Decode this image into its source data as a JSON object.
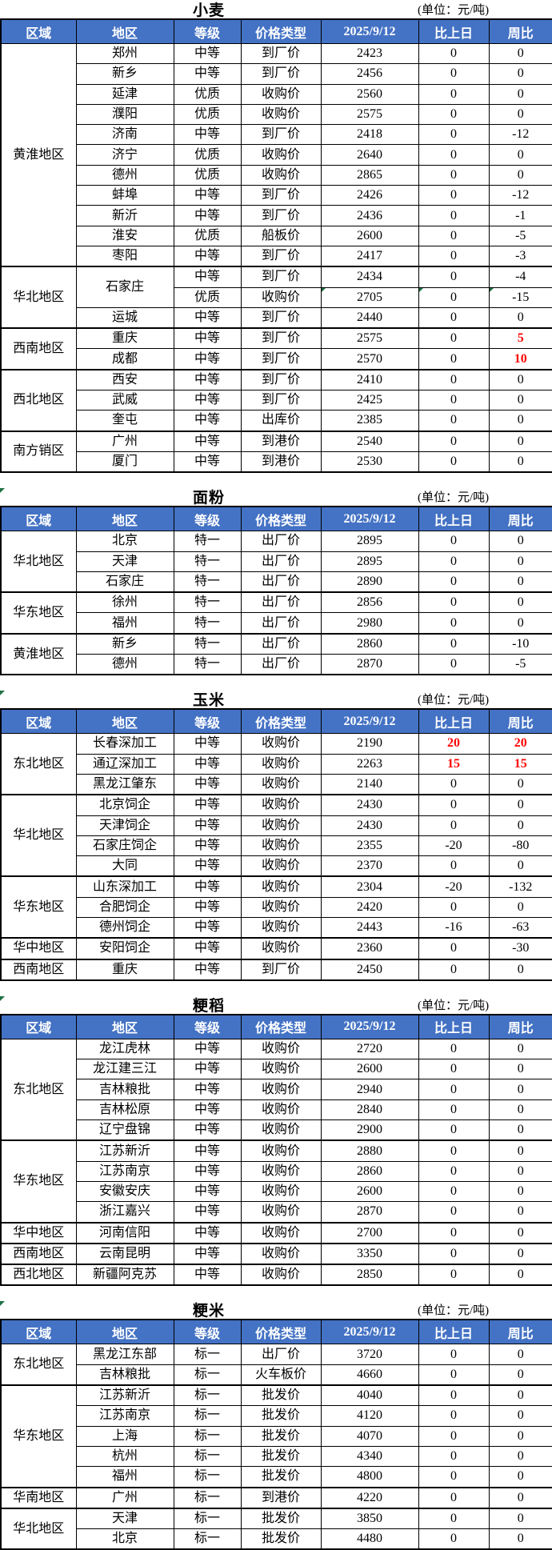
{
  "unit_label": "(单位：元/吨)",
  "columns": [
    "区域",
    "地区",
    "等级",
    "价格类型",
    "2025/9/12",
    "比上日",
    "周比"
  ],
  "colors": {
    "header_bg": "#4472C4",
    "header_text": "#FFFFFF",
    "highlight_green": "#7CB95A",
    "negative_red": "#FF0000",
    "flag_green": "#1F7244",
    "border": "#000000"
  },
  "tables": [
    {
      "title": "小麦",
      "groups": [
        {
          "region": "黄淮地区",
          "rows": [
            {
              "area": "郑州",
              "grade": "中等",
              "type": "到厂价",
              "price": "2423",
              "day": "0",
              "week": "0"
            },
            {
              "area": "新乡",
              "grade": "中等",
              "type": "到厂价",
              "price": "2456",
              "day": "0",
              "week": "0"
            },
            {
              "area": "延津",
              "grade": "优质",
              "type": "收购价",
              "price": "2560",
              "day": "0",
              "week": "0"
            },
            {
              "area": "濮阳",
              "grade": "优质",
              "type": "收购价",
              "price": "2575",
              "day": "0",
              "week": "0"
            },
            {
              "area": "济南",
              "grade": "中等",
              "type": "到厂价",
              "price": "2418",
              "day": "0",
              "week": "-12",
              "weekBg": true
            },
            {
              "area": "济宁",
              "grade": "优质",
              "type": "收购价",
              "price": "2640",
              "day": "0",
              "week": "0"
            },
            {
              "area": "德州",
              "grade": "优质",
              "type": "收购价",
              "price": "2865",
              "day": "0",
              "week": "0"
            },
            {
              "area": "蚌埠",
              "grade": "中等",
              "type": "到厂价",
              "price": "2426",
              "day": "0",
              "week": "-12",
              "weekBg": true
            },
            {
              "area": "新沂",
              "grade": "中等",
              "type": "到厂价",
              "price": "2436",
              "day": "0",
              "week": "-1",
              "weekBg": true
            },
            {
              "area": "淮安",
              "grade": "优质",
              "type": "船板价",
              "price": "2600",
              "day": "0",
              "week": "-5",
              "weekBg": true
            },
            {
              "area": "枣阳",
              "grade": "中等",
              "type": "到厂价",
              "price": "2417",
              "day": "0",
              "week": "-3",
              "weekBg": true
            }
          ]
        },
        {
          "region": "华北地区",
          "rows": [
            {
              "area": "石家庄",
              "areaSpan": 2,
              "grade": "中等",
              "type": "到厂价",
              "price": "2434",
              "day": "0",
              "week": "-4",
              "weekBg": true
            },
            {
              "skipArea": true,
              "grade": "优质",
              "type": "收购价",
              "price": "2705",
              "day": "0",
              "week": "-15",
              "weekBg": true,
              "flags": [
                "price",
                "day",
                "week"
              ]
            },
            {
              "area": "运城",
              "grade": "中等",
              "type": "到厂价",
              "price": "2440",
              "day": "0",
              "week": "0"
            }
          ]
        },
        {
          "region": "西南地区",
          "rows": [
            {
              "area": "重庆",
              "grade": "中等",
              "type": "到厂价",
              "price": "2575",
              "day": "0",
              "week": "5",
              "weekRed": true
            },
            {
              "area": "成都",
              "grade": "中等",
              "type": "到厂价",
              "price": "2570",
              "day": "0",
              "week": "10",
              "weekRed": true
            }
          ]
        },
        {
          "region": "西北地区",
          "rows": [
            {
              "area": "西安",
              "grade": "中等",
              "type": "到厂价",
              "price": "2410",
              "day": "0",
              "week": "0"
            },
            {
              "area": "武威",
              "grade": "中等",
              "type": "到厂价",
              "price": "2425",
              "day": "0",
              "week": "0"
            },
            {
              "area": "奎屯",
              "grade": "中等",
              "type": "出库价",
              "price": "2385",
              "day": "0",
              "week": "0"
            }
          ]
        },
        {
          "region": "南方销区",
          "rows": [
            {
              "area": "广州",
              "grade": "中等",
              "type": "到港价",
              "price": "2540",
              "day": "0",
              "week": "0"
            },
            {
              "area": "厦门",
              "grade": "中等",
              "type": "到港价",
              "price": "2530",
              "day": "0",
              "week": "0"
            }
          ]
        }
      ]
    },
    {
      "title": "面粉",
      "groups": [
        {
          "region": "华北地区",
          "rows": [
            {
              "area": "北京",
              "grade": "特一",
              "type": "出厂价",
              "price": "2895",
              "day": "0",
              "week": "0"
            },
            {
              "area": "天津",
              "grade": "特一",
              "type": "出厂价",
              "price": "2895",
              "day": "0",
              "week": "0"
            },
            {
              "area": "石家庄",
              "grade": "特一",
              "type": "出厂价",
              "price": "2890",
              "day": "0",
              "week": "0"
            }
          ]
        },
        {
          "region": "华东地区",
          "rows": [
            {
              "area": "徐州",
              "grade": "特一",
              "type": "出厂价",
              "price": "2856",
              "day": "0",
              "week": "0"
            },
            {
              "area": "福州",
              "grade": "特一",
              "type": "出厂价",
              "price": "2980",
              "day": "0",
              "week": "0"
            }
          ]
        },
        {
          "region": "黄淮地区",
          "rows": [
            {
              "area": "新乡",
              "grade": "特一",
              "type": "出厂价",
              "price": "2860",
              "day": "0",
              "week": "-10",
              "weekBg": true
            },
            {
              "area": "德州",
              "grade": "特一",
              "type": "出厂价",
              "price": "2870",
              "day": "0",
              "week": "-5",
              "weekBg": true
            }
          ]
        }
      ]
    },
    {
      "title": "玉米",
      "groups": [
        {
          "region": "东北地区",
          "rows": [
            {
              "area": "长春深加工",
              "grade": "中等",
              "type": "收购价",
              "price": "2190",
              "day": "20",
              "dayRed": true,
              "week": "20",
              "weekRed": true
            },
            {
              "area": "通辽深加工",
              "grade": "中等",
              "type": "收购价",
              "price": "2263",
              "day": "15",
              "dayRed": true,
              "week": "15",
              "weekRed": true
            },
            {
              "area": "黑龙江肇东",
              "grade": "中等",
              "type": "收购价",
              "price": "2140",
              "day": "0",
              "week": "0"
            }
          ]
        },
        {
          "region": "华北地区",
          "rows": [
            {
              "area": "北京饲企",
              "grade": "中等",
              "type": "收购价",
              "price": "2430",
              "day": "0",
              "week": "0"
            },
            {
              "area": "天津饲企",
              "grade": "中等",
              "type": "收购价",
              "price": "2430",
              "day": "0",
              "week": "0"
            },
            {
              "area": "石家庄饲企",
              "grade": "中等",
              "type": "收购价",
              "price": "2355",
              "day": "-20",
              "dayBg": true,
              "week": "-80",
              "weekBg": true
            },
            {
              "area": "大同",
              "grade": "中等",
              "type": "收购价",
              "price": "2370",
              "day": "0",
              "week": "0"
            }
          ]
        },
        {
          "region": "华东地区",
          "rows": [
            {
              "area": "山东深加工",
              "grade": "中等",
              "type": "收购价",
              "price": "2304",
              "day": "-20",
              "dayBg": true,
              "week": "-132",
              "weekBg": true
            },
            {
              "area": "合肥饲企",
              "grade": "中等",
              "type": "收购价",
              "price": "2420",
              "day": "0",
              "week": "0"
            },
            {
              "area": "德州饲企",
              "grade": "中等",
              "type": "收购价",
              "price": "2443",
              "day": "-16",
              "dayBg": true,
              "week": "-63",
              "weekBg": true
            }
          ]
        },
        {
          "region": "华中地区",
          "rows": [
            {
              "area": "安阳饲企",
              "grade": "中等",
              "type": "收购价",
              "price": "2360",
              "day": "0",
              "week": "-30",
              "weekBg": true
            }
          ]
        },
        {
          "region": "西南地区",
          "rows": [
            {
              "area": "重庆",
              "grade": "中等",
              "type": "到厂价",
              "price": "2450",
              "day": "0",
              "week": "0"
            }
          ]
        }
      ]
    },
    {
      "title": "粳稻",
      "groups": [
        {
          "region": "东北地区",
          "rows": [
            {
              "area": "龙江虎林",
              "grade": "中等",
              "type": "收购价",
              "price": "2720",
              "day": "0",
              "week": "0"
            },
            {
              "area": "龙江建三江",
              "grade": "中等",
              "type": "收购价",
              "price": "2600",
              "day": "0",
              "week": "0"
            },
            {
              "area": "吉林粮批",
              "grade": "中等",
              "type": "收购价",
              "price": "2940",
              "day": "0",
              "week": "0"
            },
            {
              "area": "吉林松原",
              "grade": "中等",
              "type": "收购价",
              "price": "2840",
              "day": "0",
              "week": "0"
            },
            {
              "area": "辽宁盘锦",
              "grade": "中等",
              "type": "收购价",
              "price": "2900",
              "day": "0",
              "week": "0"
            }
          ]
        },
        {
          "region": "华东地区",
          "rows": [
            {
              "area": "江苏新沂",
              "grade": "中等",
              "type": "收购价",
              "price": "2880",
              "day": "0",
              "week": "0"
            },
            {
              "area": "江苏南京",
              "grade": "中等",
              "type": "收购价",
              "price": "2860",
              "day": "0",
              "week": "0"
            },
            {
              "area": "安徽安庆",
              "grade": "中等",
              "type": "收购价",
              "price": "2600",
              "day": "0",
              "week": "0"
            },
            {
              "area": "浙江嘉兴",
              "grade": "中等",
              "type": "收购价",
              "price": "2870",
              "day": "0",
              "week": "0"
            }
          ]
        },
        {
          "region": "华中地区",
          "rows": [
            {
              "area": "河南信阳",
              "grade": "中等",
              "type": "收购价",
              "price": "2700",
              "day": "0",
              "week": "0"
            }
          ]
        },
        {
          "region": "西南地区",
          "rows": [
            {
              "area": "云南昆明",
              "grade": "中等",
              "type": "收购价",
              "price": "3350",
              "day": "0",
              "week": "0"
            }
          ]
        },
        {
          "region": "西北地区",
          "rows": [
            {
              "area": "新疆阿克苏",
              "grade": "中等",
              "type": "收购价",
              "price": "2850",
              "day": "0",
              "week": "0"
            }
          ]
        }
      ]
    },
    {
      "title": "粳米",
      "groups": [
        {
          "region": "东北地区",
          "rows": [
            {
              "area": "黑龙江东部",
              "grade": "标一",
              "type": "出厂价",
              "price": "3720",
              "day": "0",
              "week": "0"
            },
            {
              "area": "吉林粮批",
              "grade": "标一",
              "type": "火车板价",
              "price": "4660",
              "day": "0",
              "week": "0"
            }
          ]
        },
        {
          "region": "华东地区",
          "rows": [
            {
              "area": "江苏新沂",
              "grade": "标一",
              "type": "批发价",
              "price": "4040",
              "day": "0",
              "week": "0"
            },
            {
              "area": "江苏南京",
              "grade": "标一",
              "type": "批发价",
              "price": "4120",
              "day": "0",
              "week": "0"
            },
            {
              "area": "上海",
              "grade": "标一",
              "type": "批发价",
              "price": "4070",
              "day": "0",
              "week": "0"
            },
            {
              "area": "杭州",
              "grade": "标一",
              "type": "批发价",
              "price": "4340",
              "day": "0",
              "week": "0"
            },
            {
              "area": "福州",
              "grade": "标一",
              "type": "批发价",
              "price": "4800",
              "day": "0",
              "week": "0"
            }
          ]
        },
        {
          "region": "华南地区",
          "rows": [
            {
              "area": "广州",
              "grade": "标一",
              "type": "到港价",
              "price": "4220",
              "day": "0",
              "week": "0"
            }
          ]
        },
        {
          "region": "华北地区",
          "rows": [
            {
              "area": "天津",
              "grade": "标一",
              "type": "批发价",
              "price": "3850",
              "day": "0",
              "week": "0"
            },
            {
              "area": "北京",
              "grade": "标一",
              "type": "批发价",
              "price": "4480",
              "day": "0",
              "week": "0"
            }
          ]
        }
      ]
    }
  ]
}
